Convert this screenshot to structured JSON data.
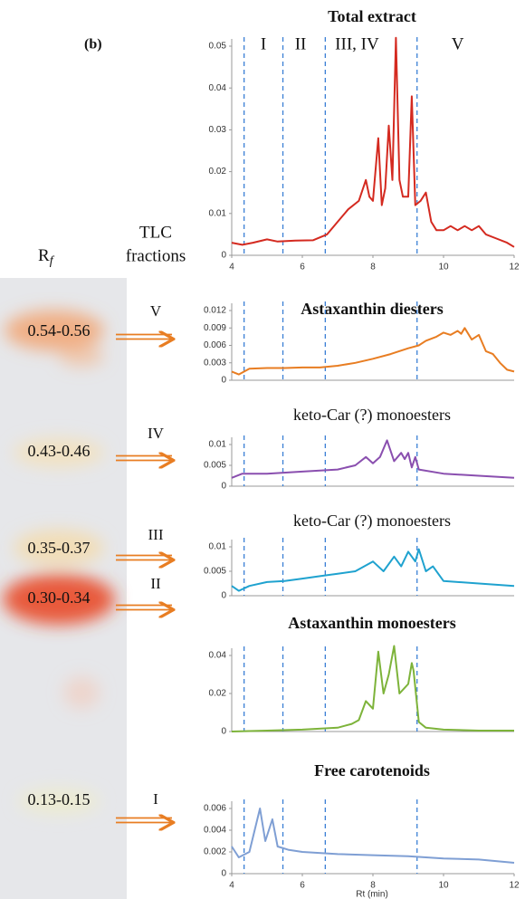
{
  "figure_label": "(b)",
  "tlc_heading": [
    "TLC",
    "fractions"
  ],
  "rf_heading": {
    "symbol": "R",
    "subscript": "f"
  },
  "tlc_fractions": [
    {
      "rf": "0.54-0.56",
      "fraction": "V"
    },
    {
      "rf": "0.43-0.46",
      "fraction": "IV"
    },
    {
      "rf": "0.35-0.37",
      "fraction": "III"
    },
    {
      "rf": "0.30-0.34",
      "fraction": "II"
    },
    {
      "rf": "0.13-0.15",
      "fraction": "I"
    }
  ],
  "region_boundaries": [
    4.35,
    5.45,
    6.65,
    9.25
  ],
  "chart_data": [
    {
      "type": "line",
      "title": "Total extract",
      "color": "#d42a20",
      "x": [
        4,
        4.3,
        4.6,
        5,
        5.3,
        5.8,
        6.3,
        6.7,
        7,
        7.3,
        7.6,
        7.8,
        7.9,
        8.0,
        8.15,
        8.25,
        8.35,
        8.45,
        8.55,
        8.65,
        8.75,
        8.85,
        9.0,
        9.1,
        9.2,
        9.35,
        9.5,
        9.65,
        9.8,
        10,
        10.2,
        10.4,
        10.6,
        10.8,
        11,
        11.2,
        11.5,
        11.8,
        12
      ],
      "values": [
        0.003,
        0.0025,
        0.003,
        0.0038,
        0.0033,
        0.0035,
        0.0036,
        0.005,
        0.008,
        0.011,
        0.013,
        0.018,
        0.014,
        0.013,
        0.028,
        0.012,
        0.016,
        0.031,
        0.018,
        0.052,
        0.018,
        0.014,
        0.014,
        0.038,
        0.012,
        0.013,
        0.015,
        0.008,
        0.006,
        0.006,
        0.007,
        0.006,
        0.007,
        0.006,
        0.007,
        0.005,
        0.004,
        0.003,
        0.002
      ],
      "xlim": [
        4,
        12
      ],
      "xticks": [
        4,
        6,
        8,
        10,
        12
      ],
      "ylim": [
        0,
        0.05
      ],
      "yticks": [
        0,
        0.01,
        0.02,
        0.03,
        0.04,
        0.05
      ],
      "annotations": [
        {
          "text": "I",
          "x": 4.9
        },
        {
          "text": "II",
          "x": 5.95
        },
        {
          "text": "III, IV",
          "x": 7.55
        },
        {
          "text": "V",
          "x": 10.4
        }
      ]
    },
    {
      "type": "line",
      "title": "Astaxanthin diesters",
      "color": "#e87d22",
      "x": [
        4,
        4.2,
        4.5,
        5,
        5.5,
        6,
        6.5,
        7,
        7.5,
        8,
        8.5,
        9,
        9.3,
        9.5,
        9.8,
        10,
        10.2,
        10.4,
        10.5,
        10.6,
        10.8,
        11,
        11.2,
        11.4,
        11.6,
        11.8,
        12
      ],
      "values": [
        0.0015,
        0.001,
        0.002,
        0.0021,
        0.0021,
        0.0022,
        0.0022,
        0.0025,
        0.003,
        0.0037,
        0.0045,
        0.0055,
        0.006,
        0.0068,
        0.0075,
        0.0082,
        0.0078,
        0.0085,
        0.008,
        0.009,
        0.007,
        0.0078,
        0.005,
        0.0045,
        0.003,
        0.0018,
        0.0015
      ],
      "xlim": [
        4,
        12
      ],
      "ylim": [
        0,
        0.012
      ],
      "yticks": [
        0,
        0.003,
        0.006,
        0.009,
        0.012
      ]
    },
    {
      "type": "line",
      "title": "keto-Car (?) monoesters",
      "color": "#8a4faf",
      "x": [
        4,
        4.3,
        5,
        6,
        7,
        7.5,
        7.8,
        8,
        8.2,
        8.4,
        8.6,
        8.8,
        8.9,
        9.0,
        9.1,
        9.2,
        9.3,
        10,
        11,
        12
      ],
      "values": [
        0.002,
        0.003,
        0.003,
        0.0035,
        0.004,
        0.005,
        0.007,
        0.0055,
        0.007,
        0.011,
        0.006,
        0.008,
        0.0065,
        0.008,
        0.0045,
        0.007,
        0.004,
        0.003,
        0.0025,
        0.002
      ],
      "xlim": [
        4,
        12
      ],
      "ylim": [
        0,
        0.01
      ],
      "yticks": [
        0,
        0.005,
        0.01
      ]
    },
    {
      "type": "line",
      "title": "keto-Car (?) monoesters",
      "color": "#1fa2cf",
      "x": [
        4,
        4.2,
        4.5,
        5,
        5.5,
        6,
        6.5,
        7,
        7.5,
        8,
        8.3,
        8.6,
        8.8,
        9.0,
        9.2,
        9.3,
        9.5,
        9.7,
        10,
        11,
        12
      ],
      "values": [
        0.002,
        0.001,
        0.002,
        0.0028,
        0.003,
        0.0035,
        0.004,
        0.0045,
        0.005,
        0.007,
        0.005,
        0.008,
        0.006,
        0.009,
        0.007,
        0.0095,
        0.005,
        0.006,
        0.003,
        0.0025,
        0.002
      ],
      "xlim": [
        4,
        12
      ],
      "ylim": [
        0,
        0.01
      ],
      "yticks": [
        0,
        0.005,
        0.01
      ]
    },
    {
      "type": "line",
      "title": "Astaxanthin monoesters",
      "color": "#7db33a",
      "x": [
        4,
        5,
        6,
        7,
        7.4,
        7.6,
        7.8,
        8.0,
        8.15,
        8.3,
        8.45,
        8.6,
        8.75,
        9.0,
        9.1,
        9.15,
        9.3,
        9.5,
        10,
        11,
        12
      ],
      "values": [
        0,
        0.0005,
        0.001,
        0.002,
        0.004,
        0.006,
        0.016,
        0.012,
        0.042,
        0.02,
        0.03,
        0.045,
        0.02,
        0.025,
        0.036,
        0.032,
        0.005,
        0.002,
        0.001,
        0.0005,
        0.0005
      ],
      "xlim": [
        4,
        12
      ],
      "ylim": [
        0,
        0.04
      ],
      "yticks": [
        0,
        0.02,
        0.04
      ]
    },
    {
      "type": "line",
      "title": "Free carotenoids",
      "color": "#7f9fd4",
      "x": [
        4,
        4.2,
        4.5,
        4.8,
        4.95,
        5.15,
        5.3,
        5.6,
        6,
        7,
        8,
        9,
        10,
        11,
        12
      ],
      "values": [
        0.0025,
        0.0015,
        0.002,
        0.006,
        0.003,
        0.005,
        0.0025,
        0.0022,
        0.002,
        0.0018,
        0.0017,
        0.0016,
        0.0014,
        0.0013,
        0.001
      ],
      "xlim": [
        4,
        12
      ],
      "xticks": [
        4,
        6,
        8,
        10,
        12
      ],
      "xlabel": "Rt (min)",
      "ylim": [
        0,
        0.006
      ],
      "yticks": [
        0,
        0.002,
        0.004,
        0.006
      ]
    }
  ]
}
